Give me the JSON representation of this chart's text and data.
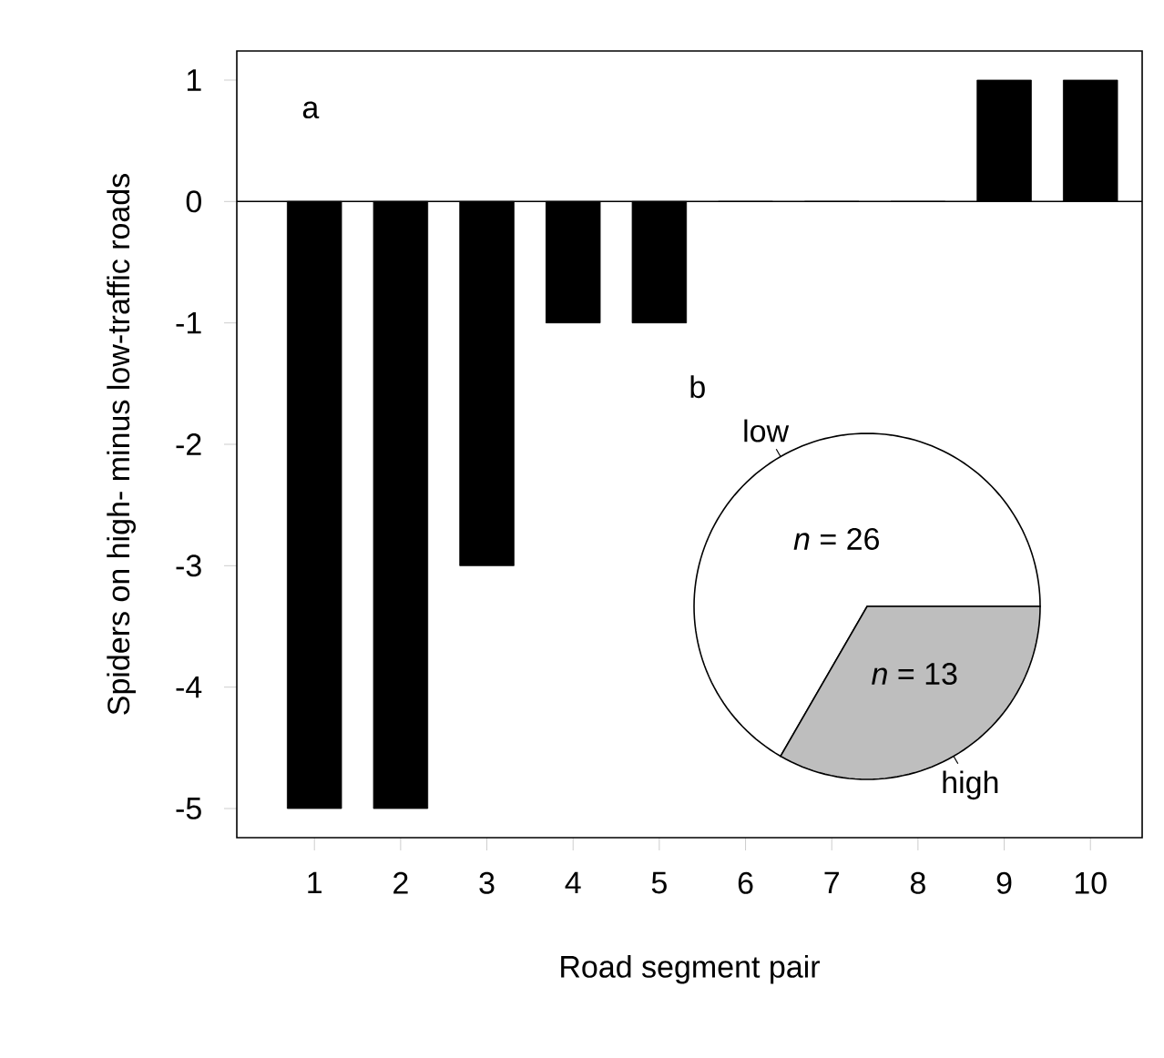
{
  "chart_data": [
    {
      "type": "bar",
      "xlabel": "Road segment pair",
      "ylabel": "Spiders on high- minus low-traffic roads",
      "categories": [
        "1",
        "2",
        "3",
        "4",
        "5",
        "6",
        "7",
        "8",
        "9",
        "10"
      ],
      "values": [
        -5,
        -5,
        -3,
        -1,
        -1,
        0,
        0,
        0,
        1,
        1
      ],
      "color": "#000000",
      "ylim": [
        -5.24,
        1.24
      ],
      "yticks": [
        -5,
        -4,
        -3,
        -2,
        -1,
        0,
        1
      ],
      "ref_lines": [
        {
          "axis": "y",
          "value": 0
        }
      ],
      "annotations": [
        "a"
      ]
    },
    {
      "type": "pie",
      "categories": [
        "low",
        "high"
      ],
      "values": [
        26,
        13
      ],
      "colors": [
        "#ffffff",
        "#bebebe"
      ],
      "value_labels": [
        "*n* = 26",
        "*n* = 13"
      ],
      "annotations": [
        "b"
      ]
    }
  ]
}
